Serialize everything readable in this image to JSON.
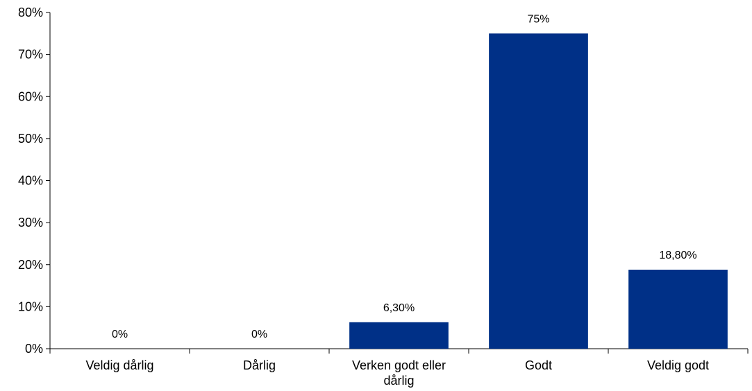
{
  "chart_data": {
    "type": "bar",
    "categories": [
      "Veldig dårlig",
      "Dårlig",
      "Verken godt eller dårlig",
      "Godt",
      "Veldig godt"
    ],
    "category_lines": [
      [
        "Veldig dårlig"
      ],
      [
        "Dårlig"
      ],
      [
        "Verken godt eller",
        "dårlig"
      ],
      [
        "Godt"
      ],
      [
        "Veldig godt"
      ]
    ],
    "values": [
      0,
      0,
      6.3,
      75,
      18.8
    ],
    "data_labels": [
      "0%",
      "0%",
      "6,30%",
      "75%",
      "18,80%"
    ],
    "ylim": [
      0,
      80
    ],
    "yticks": [
      0,
      10,
      20,
      30,
      40,
      50,
      60,
      70,
      80
    ],
    "ytick_labels": [
      "0%",
      "10%",
      "20%",
      "30%",
      "40%",
      "50%",
      "60%",
      "70%",
      "80%"
    ],
    "title": "",
    "xlabel": "",
    "ylabel": "",
    "grid": false,
    "legend": "none",
    "bar_color": "#003087"
  }
}
